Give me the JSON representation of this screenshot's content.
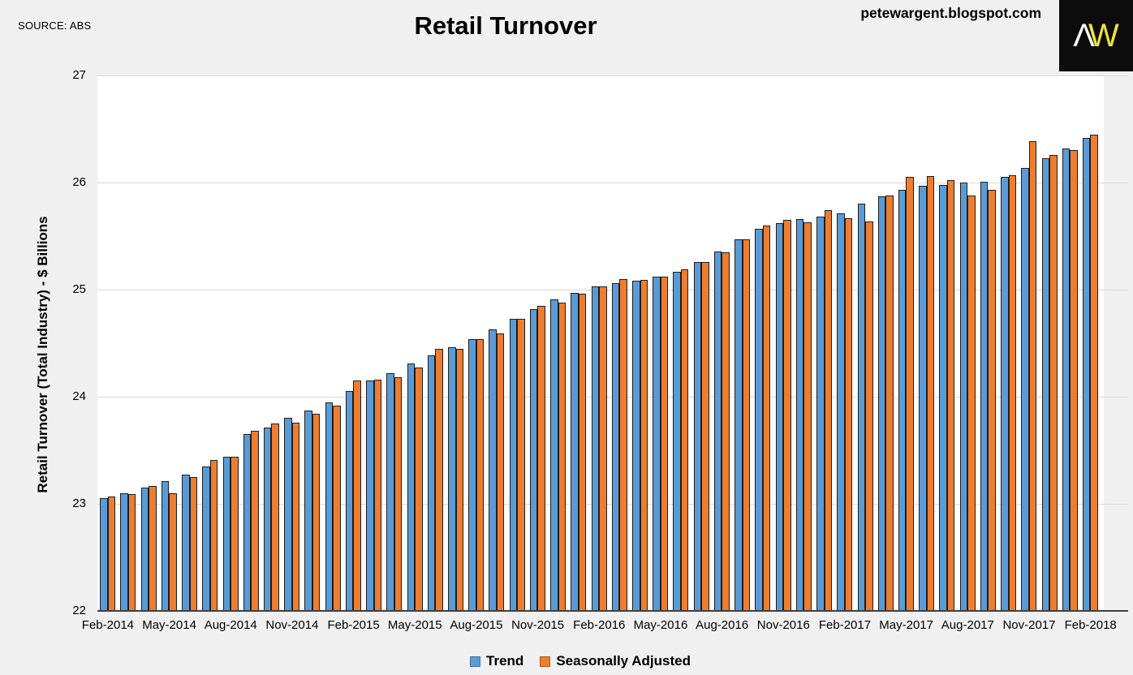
{
  "page": {
    "source_label": "SOURCE: ABS",
    "watermark": "petewargent.blogspot.com",
    "logo": {
      "lambda": "Λ",
      "w": "W"
    },
    "background_color": "#f0f0f0"
  },
  "chart_data": {
    "type": "bar",
    "title": "Retail Turnover",
    "ylabel": "Retail Turnover (Total Industry) - $ Billions",
    "xlabel": "",
    "ylim": [
      22,
      27
    ],
    "yticks": [
      22,
      23,
      24,
      25,
      26,
      27
    ],
    "xtick_every": 3,
    "grid": "horizontal",
    "gridline_color": "#d9d9d9",
    "plot_background": "#ffffff",
    "legend_position": "bottom-center",
    "categories": [
      "Feb-2014",
      "Mar-2014",
      "Apr-2014",
      "May-2014",
      "Jun-2014",
      "Jul-2014",
      "Aug-2014",
      "Sep-2014",
      "Oct-2014",
      "Nov-2014",
      "Dec-2014",
      "Jan-2015",
      "Feb-2015",
      "Mar-2015",
      "Apr-2015",
      "May-2015",
      "Jun-2015",
      "Jul-2015",
      "Aug-2015",
      "Sep-2015",
      "Oct-2015",
      "Nov-2015",
      "Dec-2015",
      "Jan-2016",
      "Feb-2016",
      "Mar-2016",
      "Apr-2016",
      "May-2016",
      "Jun-2016",
      "Jul-2016",
      "Aug-2016",
      "Sep-2016",
      "Oct-2016",
      "Nov-2016",
      "Dec-2016",
      "Jan-2017",
      "Feb-2017",
      "Mar-2017",
      "Apr-2017",
      "May-2017",
      "Jun-2017",
      "Jul-2017",
      "Aug-2017",
      "Sep-2017",
      "Oct-2017",
      "Nov-2017",
      "Dec-2017",
      "Jan-2018",
      "Feb-2018"
    ],
    "series": [
      {
        "name": "Trend",
        "color": "#5B9BD5",
        "border_color": "#1e2f4d",
        "swatch_border": "#41719C",
        "values": [
          23.05,
          23.1,
          23.15,
          23.21,
          23.27,
          23.35,
          23.44,
          23.65,
          23.71,
          23.8,
          23.87,
          23.95,
          24.05,
          24.15,
          24.22,
          24.31,
          24.39,
          24.46,
          24.54,
          24.63,
          24.73,
          24.82,
          24.91,
          24.97,
          25.03,
          25.06,
          25.08,
          25.12,
          25.17,
          25.26,
          25.36,
          25.47,
          25.57,
          25.62,
          25.66,
          25.68,
          25.71,
          25.8,
          25.87,
          25.93,
          25.97,
          25.98,
          26.0,
          26.01,
          26.05,
          26.14,
          26.23,
          26.32,
          26.42
        ]
      },
      {
        "name": "Seasonally Adjusted",
        "color": "#ED7D31",
        "border_color": "#4d2a10",
        "swatch_border": "#AE5A21",
        "values": [
          23.07,
          23.09,
          23.17,
          23.1,
          23.25,
          23.41,
          23.44,
          23.68,
          23.75,
          23.76,
          23.84,
          23.92,
          24.15,
          24.16,
          24.18,
          24.27,
          24.45,
          24.45,
          24.54,
          24.59,
          24.73,
          24.85,
          24.88,
          24.96,
          25.03,
          25.1,
          25.09,
          25.12,
          25.19,
          25.26,
          25.35,
          25.47,
          25.6,
          25.65,
          25.63,
          25.74,
          25.67,
          25.64,
          25.88,
          26.05,
          26.06,
          26.02,
          25.88,
          25.93,
          26.07,
          26.39,
          26.26,
          26.3,
          26.45
        ]
      }
    ]
  }
}
